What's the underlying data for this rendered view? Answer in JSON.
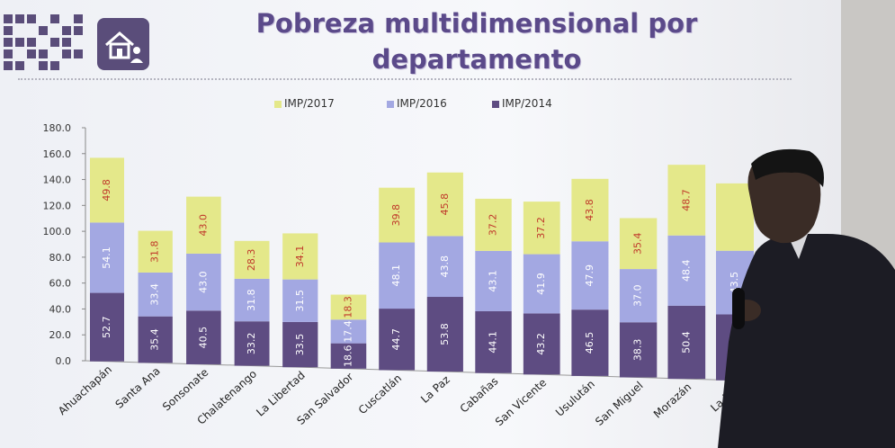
{
  "slide": {
    "title_line1": "Pobreza multidimensional por",
    "title_line2": "departamento"
  },
  "colors": {
    "imp2017": "#e4e88a",
    "imp2016": "#a3a8e2",
    "imp2014": "#5e4c82",
    "screen_bg": "#f6f7fa",
    "title": "#5b4a8a"
  },
  "logo": {
    "icon": "dot-grid-logo-icon",
    "badge_icon": "house-person-icon"
  },
  "chart_data": {
    "type": "bar",
    "stacked": true,
    "categories": [
      "Ahuachapán",
      "Santa Ana",
      "Sonsonate",
      "Chalatenango",
      "La Libertad",
      "San Salvador",
      "Cuscatlán",
      "La Paz",
      "Cabañas",
      "San Vicente",
      "Usulután",
      "San Miguel",
      "Morazán",
      "La U..."
    ],
    "series": [
      {
        "name": "IMP/2014",
        "values": [
          52.7,
          35.4,
          40.5,
          33.2,
          33.5,
          18.6,
          44.7,
          53.8,
          44.1,
          43.2,
          46.5,
          38.3,
          50.4,
          45.0
        ]
      },
      {
        "name": "IMP/2016",
        "values": [
          54.1,
          33.4,
          43.0,
          31.8,
          31.5,
          17.4,
          48.1,
          43.8,
          43.1,
          41.9,
          47.9,
          37.0,
          48.4,
          43.5
        ]
      },
      {
        "name": "IMP/2017",
        "values": [
          49.8,
          31.8,
          43.0,
          28.3,
          34.1,
          18.3,
          39.8,
          45.8,
          37.2,
          37.2,
          43.8,
          35.4,
          48.7,
          46.0
        ]
      }
    ],
    "data_labels": {
      "IMP/2014": [
        "52.7",
        "35.4",
        "40.5",
        "33.2",
        "33.5",
        "18.6",
        "44.7",
        "53.8",
        "44.1",
        "43.2",
        "46.5",
        "38.3",
        "50.4",
        ""
      ],
      "IMP/2016": [
        "54.1",
        "33.4",
        "43.0",
        "31.8",
        "31.5",
        "17.4",
        "48.1",
        "43.8",
        "43.1",
        "41.9",
        "47.9",
        "37.0",
        "48.4",
        "43.5"
      ],
      "IMP/2017": [
        "49.8",
        "31.8",
        "43.0",
        "28.3",
        "34.1",
        "18.3",
        "39.8",
        "45.8",
        "37.2",
        "37.2",
        "43.8",
        "35.4",
        "48.7",
        ""
      ]
    },
    "legend_order": [
      "IMP/2017",
      "IMP/2016",
      "IMP/2014"
    ],
    "y_ticks": [
      "0.0",
      "20.0",
      "40.0",
      "60.0",
      "80.0",
      "100.0",
      "120.0",
      "140.0",
      "160.0",
      "180.0"
    ],
    "ylim": [
      0,
      180
    ],
    "legend_placement": "top-center",
    "grid": false
  }
}
